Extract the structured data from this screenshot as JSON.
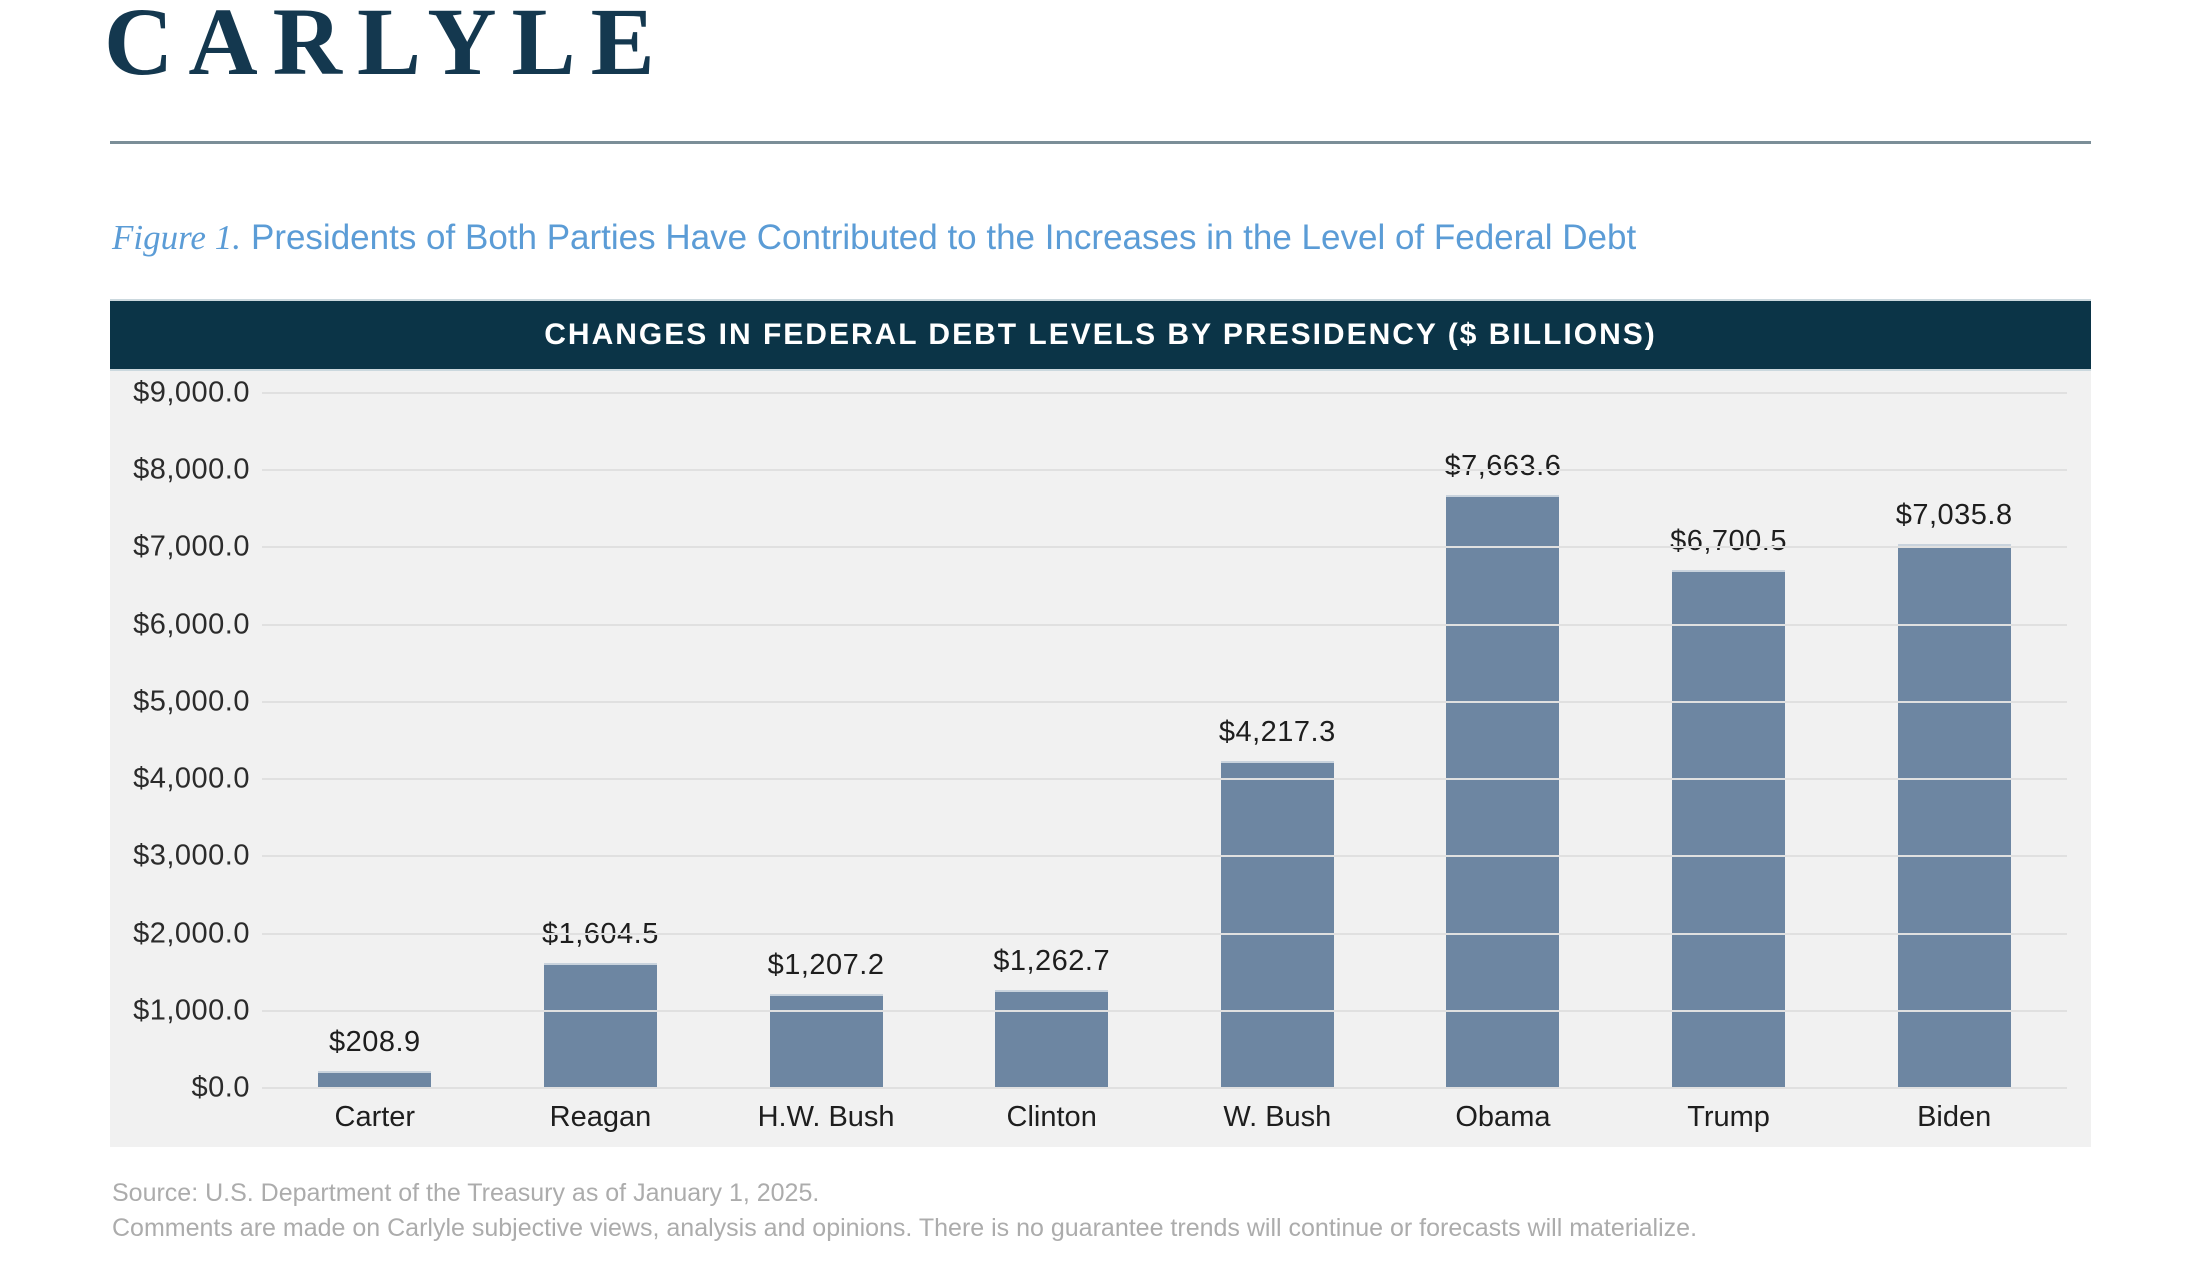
{
  "page": {
    "logo": "CARLYLE",
    "figure_label": "Figure 1.",
    "figure_title": "Presidents of Both Parties Have Contributed to the Increases in the Level of Federal Debt",
    "source_line1": "Source: U.S. Department of the Treasury as of January 1, 2025.",
    "source_line2": "Comments are made on Carlyle subjective views, analysis and opinions. There is no guarantee trends will continue or forecasts will materialize."
  },
  "chart_data": {
    "type": "bar",
    "title": "CHANGES IN FEDERAL DEBT LEVELS BY PRESIDENCY ($ BILLIONS)",
    "categories": [
      "Carter",
      "Reagan",
      "H.W. Bush",
      "Clinton",
      "W. Bush",
      "Obama",
      "Trump",
      "Biden"
    ],
    "values": [
      208.9,
      1604.5,
      1207.2,
      1262.7,
      4217.3,
      7663.6,
      6700.5,
      7035.8
    ],
    "value_labels": [
      "$208.9",
      "$1,604.5",
      "$1,207.2",
      "$1,262.7",
      "$4,217.3",
      "$7,663.6",
      "$6,700.5",
      "$7,035.8"
    ],
    "ytick_labels": [
      "$9,000.0",
      "$8,000.0",
      "$7,000.0",
      "$6,000.0",
      "$5,000.0",
      "$4,000.0",
      "$3,000.0",
      "$2,000.0",
      "$1,000.0",
      "$0.0"
    ],
    "ytick_values": [
      9000,
      8000,
      7000,
      6000,
      5000,
      4000,
      3000,
      2000,
      1000,
      0
    ],
    "ylim": [
      0,
      9000
    ],
    "xlabel": "",
    "ylabel": "",
    "grid": true,
    "legend_position": "none",
    "colors": {
      "bar": "#6D86A2",
      "bar_top_edge": "#C9D3DD",
      "plot_background": "#F1F1F1",
      "header_background": "#0B3447",
      "header_text": "#FFFFFF",
      "gridline": "#E0E0E0",
      "figure_title_blue": "#5B9CD6",
      "logo_navy": "#14384F",
      "source_gray": "#ACACAC"
    }
  }
}
